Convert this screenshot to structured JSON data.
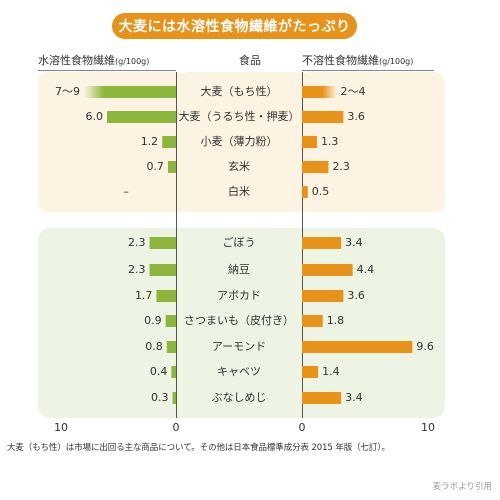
{
  "title": "大麦には水溶性食物繊維がたっぷり",
  "headers": {
    "left": "水溶性食物繊維",
    "left_unit": "(g/100g)",
    "center": "食品",
    "right": "不溶性食物繊維",
    "right_unit": "(g/100g)"
  },
  "footnote": "大麦（もち性）は市場に出回る主な商品について。その他は日本食品標準成分表 2015 年版（七訂）。",
  "source": "麦ラボより引用",
  "colors": {
    "soluble": "#8db63c",
    "insoluble": "#e8921a",
    "banner": "#e8921a"
  },
  "chart_data": {
    "type": "bar",
    "title": "大麦には水溶性食物繊維がたっぷり",
    "categories": [
      "大麦（もち性）",
      "大麦（うるち性・押麦）",
      "小麦（薄力粉）",
      "玄米",
      "白米",
      "ごぼう",
      "納豆",
      "アボカド",
      "さつまいも（皮付き）",
      "アーモンド",
      "キャベツ",
      "ぶなしめじ"
    ],
    "groups": [
      [
        0,
        1,
        2,
        3,
        4
      ],
      [
        5,
        6,
        7,
        8,
        9,
        10,
        11
      ]
    ],
    "series": [
      {
        "name": "水溶性食物繊維",
        "values": [
          8,
          6.0,
          1.2,
          0.7,
          0,
          2.3,
          2.3,
          1.7,
          0.9,
          0.8,
          0.4,
          0.3
        ],
        "labels": [
          "7〜9",
          "6.0",
          "1.2",
          "0.7",
          "–",
          "2.3",
          "2.3",
          "1.7",
          "0.9",
          "0.8",
          "0.4",
          "0.3"
        ],
        "direction": "left"
      },
      {
        "name": "不溶性食物繊維",
        "values": [
          3,
          3.6,
          1.3,
          2.3,
          0.5,
          3.4,
          4.4,
          3.6,
          1.8,
          9.6,
          1.4,
          3.4
        ],
        "labels": [
          "2〜4",
          "3.6",
          "1.3",
          "2.3",
          "0.5",
          "3.4",
          "4.4",
          "3.6",
          "1.8",
          "9.6",
          "1.4",
          "3.4"
        ],
        "direction": "right"
      }
    ],
    "range_bars": [
      0
    ],
    "xlim": [
      0,
      10
    ],
    "tick_labels_left": [
      "10",
      "0"
    ],
    "tick_labels_right": [
      "0",
      "10"
    ],
    "xlabel": "",
    "ylabel": "(g/100g)"
  }
}
